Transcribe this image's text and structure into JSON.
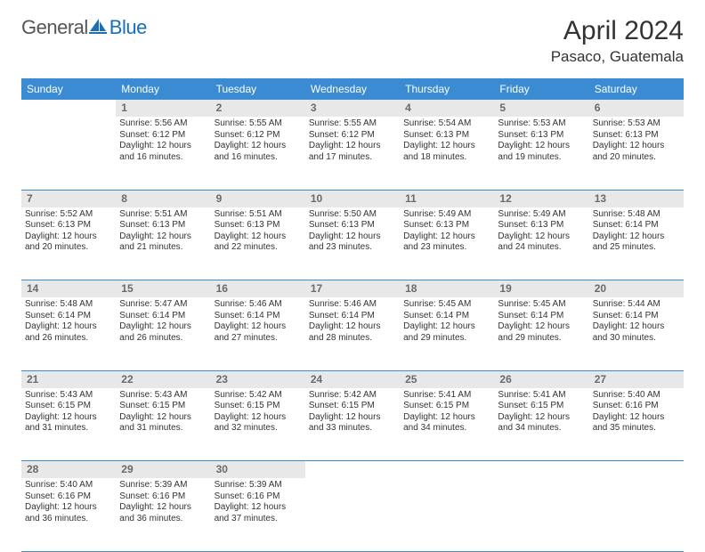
{
  "logo": {
    "general": "General",
    "blue": "Blue"
  },
  "title": "April 2024",
  "location": "Pasaco, Guatemala",
  "day_headers": [
    "Sunday",
    "Monday",
    "Tuesday",
    "Wednesday",
    "Thursday",
    "Friday",
    "Saturday"
  ],
  "colors": {
    "header_bg": "#3a8bd1",
    "header_fg": "#ffffff",
    "daynum_bg": "#e8e8e8",
    "daynum_fg": "#6a6a6a",
    "rule": "#3a8bd1",
    "logo_blue": "#1a6fb5"
  },
  "weeks": [
    [
      null,
      {
        "n": "1",
        "sr": "Sunrise: 5:56 AM",
        "ss": "Sunset: 6:12 PM",
        "d1": "Daylight: 12 hours",
        "d2": "and 16 minutes."
      },
      {
        "n": "2",
        "sr": "Sunrise: 5:55 AM",
        "ss": "Sunset: 6:12 PM",
        "d1": "Daylight: 12 hours",
        "d2": "and 16 minutes."
      },
      {
        "n": "3",
        "sr": "Sunrise: 5:55 AM",
        "ss": "Sunset: 6:12 PM",
        "d1": "Daylight: 12 hours",
        "d2": "and 17 minutes."
      },
      {
        "n": "4",
        "sr": "Sunrise: 5:54 AM",
        "ss": "Sunset: 6:13 PM",
        "d1": "Daylight: 12 hours",
        "d2": "and 18 minutes."
      },
      {
        "n": "5",
        "sr": "Sunrise: 5:53 AM",
        "ss": "Sunset: 6:13 PM",
        "d1": "Daylight: 12 hours",
        "d2": "and 19 minutes."
      },
      {
        "n": "6",
        "sr": "Sunrise: 5:53 AM",
        "ss": "Sunset: 6:13 PM",
        "d1": "Daylight: 12 hours",
        "d2": "and 20 minutes."
      }
    ],
    [
      {
        "n": "7",
        "sr": "Sunrise: 5:52 AM",
        "ss": "Sunset: 6:13 PM",
        "d1": "Daylight: 12 hours",
        "d2": "and 20 minutes."
      },
      {
        "n": "8",
        "sr": "Sunrise: 5:51 AM",
        "ss": "Sunset: 6:13 PM",
        "d1": "Daylight: 12 hours",
        "d2": "and 21 minutes."
      },
      {
        "n": "9",
        "sr": "Sunrise: 5:51 AM",
        "ss": "Sunset: 6:13 PM",
        "d1": "Daylight: 12 hours",
        "d2": "and 22 minutes."
      },
      {
        "n": "10",
        "sr": "Sunrise: 5:50 AM",
        "ss": "Sunset: 6:13 PM",
        "d1": "Daylight: 12 hours",
        "d2": "and 23 minutes."
      },
      {
        "n": "11",
        "sr": "Sunrise: 5:49 AM",
        "ss": "Sunset: 6:13 PM",
        "d1": "Daylight: 12 hours",
        "d2": "and 23 minutes."
      },
      {
        "n": "12",
        "sr": "Sunrise: 5:49 AM",
        "ss": "Sunset: 6:13 PM",
        "d1": "Daylight: 12 hours",
        "d2": "and 24 minutes."
      },
      {
        "n": "13",
        "sr": "Sunrise: 5:48 AM",
        "ss": "Sunset: 6:14 PM",
        "d1": "Daylight: 12 hours",
        "d2": "and 25 minutes."
      }
    ],
    [
      {
        "n": "14",
        "sr": "Sunrise: 5:48 AM",
        "ss": "Sunset: 6:14 PM",
        "d1": "Daylight: 12 hours",
        "d2": "and 26 minutes."
      },
      {
        "n": "15",
        "sr": "Sunrise: 5:47 AM",
        "ss": "Sunset: 6:14 PM",
        "d1": "Daylight: 12 hours",
        "d2": "and 26 minutes."
      },
      {
        "n": "16",
        "sr": "Sunrise: 5:46 AM",
        "ss": "Sunset: 6:14 PM",
        "d1": "Daylight: 12 hours",
        "d2": "and 27 minutes."
      },
      {
        "n": "17",
        "sr": "Sunrise: 5:46 AM",
        "ss": "Sunset: 6:14 PM",
        "d1": "Daylight: 12 hours",
        "d2": "and 28 minutes."
      },
      {
        "n": "18",
        "sr": "Sunrise: 5:45 AM",
        "ss": "Sunset: 6:14 PM",
        "d1": "Daylight: 12 hours",
        "d2": "and 29 minutes."
      },
      {
        "n": "19",
        "sr": "Sunrise: 5:45 AM",
        "ss": "Sunset: 6:14 PM",
        "d1": "Daylight: 12 hours",
        "d2": "and 29 minutes."
      },
      {
        "n": "20",
        "sr": "Sunrise: 5:44 AM",
        "ss": "Sunset: 6:14 PM",
        "d1": "Daylight: 12 hours",
        "d2": "and 30 minutes."
      }
    ],
    [
      {
        "n": "21",
        "sr": "Sunrise: 5:43 AM",
        "ss": "Sunset: 6:15 PM",
        "d1": "Daylight: 12 hours",
        "d2": "and 31 minutes."
      },
      {
        "n": "22",
        "sr": "Sunrise: 5:43 AM",
        "ss": "Sunset: 6:15 PM",
        "d1": "Daylight: 12 hours",
        "d2": "and 31 minutes."
      },
      {
        "n": "23",
        "sr": "Sunrise: 5:42 AM",
        "ss": "Sunset: 6:15 PM",
        "d1": "Daylight: 12 hours",
        "d2": "and 32 minutes."
      },
      {
        "n": "24",
        "sr": "Sunrise: 5:42 AM",
        "ss": "Sunset: 6:15 PM",
        "d1": "Daylight: 12 hours",
        "d2": "and 33 minutes."
      },
      {
        "n": "25",
        "sr": "Sunrise: 5:41 AM",
        "ss": "Sunset: 6:15 PM",
        "d1": "Daylight: 12 hours",
        "d2": "and 34 minutes."
      },
      {
        "n": "26",
        "sr": "Sunrise: 5:41 AM",
        "ss": "Sunset: 6:15 PM",
        "d1": "Daylight: 12 hours",
        "d2": "and 34 minutes."
      },
      {
        "n": "27",
        "sr": "Sunrise: 5:40 AM",
        "ss": "Sunset: 6:16 PM",
        "d1": "Daylight: 12 hours",
        "d2": "and 35 minutes."
      }
    ],
    [
      {
        "n": "28",
        "sr": "Sunrise: 5:40 AM",
        "ss": "Sunset: 6:16 PM",
        "d1": "Daylight: 12 hours",
        "d2": "and 36 minutes."
      },
      {
        "n": "29",
        "sr": "Sunrise: 5:39 AM",
        "ss": "Sunset: 6:16 PM",
        "d1": "Daylight: 12 hours",
        "d2": "and 36 minutes."
      },
      {
        "n": "30",
        "sr": "Sunrise: 5:39 AM",
        "ss": "Sunset: 6:16 PM",
        "d1": "Daylight: 12 hours",
        "d2": "and 37 minutes."
      },
      null,
      null,
      null,
      null
    ]
  ]
}
